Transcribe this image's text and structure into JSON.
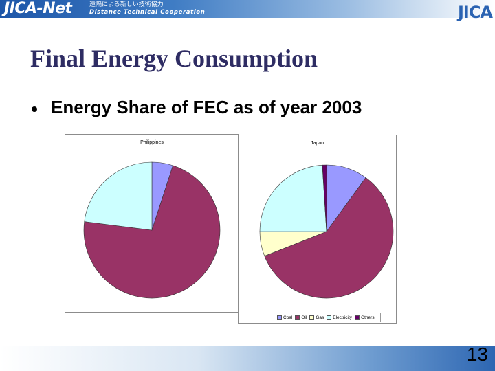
{
  "header": {
    "logo": "JICA-Net",
    "tagline_jp": "遠隔による新しい技術協力",
    "tagline_en": "Distance Technical Cooperation",
    "org": "JICA"
  },
  "slide": {
    "title": "Final Energy Consumption",
    "bullet": "Energy Share of FEC as of year 2003",
    "page_number": "13"
  },
  "legend": {
    "items": [
      {
        "label": "Coal",
        "color": "#9999ff"
      },
      {
        "label": "Oil",
        "color": "#993366"
      },
      {
        "label": "Gas",
        "color": "#ffffcc"
      },
      {
        "label": "Electricity",
        "color": "#ccffff"
      },
      {
        "label": "Others",
        "color": "#660066"
      }
    ]
  },
  "chart_data": [
    {
      "type": "pie",
      "title": "Philippines",
      "categories": [
        "Coal",
        "Oil",
        "Gas",
        "Electricity",
        "Others"
      ],
      "values": [
        5,
        72,
        0,
        23,
        0
      ]
    },
    {
      "type": "pie",
      "title": "Japan",
      "categories": [
        "Coal",
        "Oil",
        "Gas",
        "Electricity",
        "Others"
      ],
      "values": [
        10,
        59,
        6,
        24,
        1
      ]
    }
  ]
}
